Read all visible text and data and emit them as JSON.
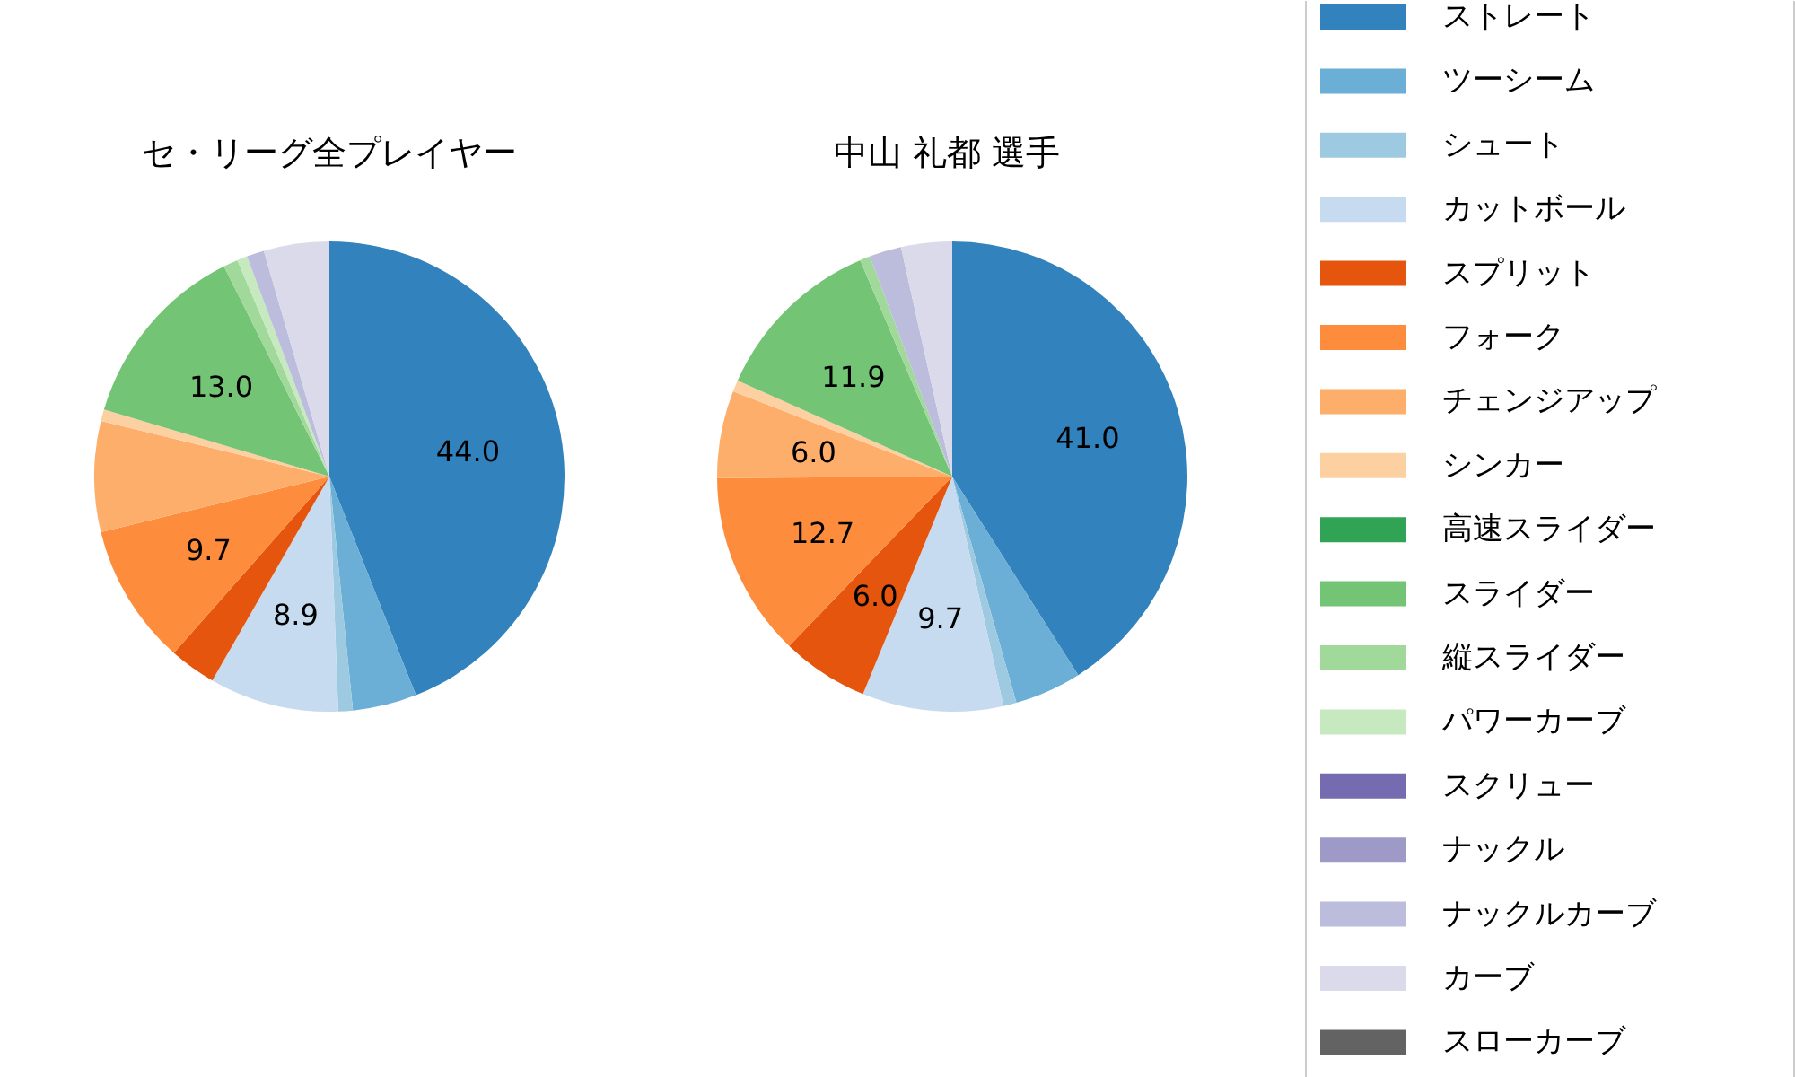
{
  "chart_data": [
    {
      "type": "pie",
      "title": "セ・リーグ全プレイヤー",
      "categories": [
        "ストレート",
        "ツーシーム",
        "シュート",
        "カットボール",
        "スプリット",
        "フォーク",
        "チェンジアップ",
        "シンカー",
        "高速スライダー",
        "スライダー",
        "縦スライダー",
        "パワーカーブ",
        "スクリュー",
        "ナックル",
        "ナックルカーブ",
        "カーブ",
        "スローカーブ"
      ],
      "values": [
        44.0,
        4.4,
        1.0,
        8.9,
        3.2,
        9.7,
        7.6,
        0.8,
        0,
        13.0,
        1.0,
        0.7,
        0,
        0,
        1.2,
        4.5,
        0
      ],
      "colors": [
        "#3182bd",
        "#6baed6",
        "#9ecae1",
        "#c6dbef",
        "#e6550d",
        "#fd8d3c",
        "#fdae6b",
        "#fdd0a2",
        "#31a354",
        "#74c476",
        "#a1d99b",
        "#c7e9c0",
        "#756bb1",
        "#9e9ac8",
        "#bcbddc",
        "#dadaeb",
        "#636363"
      ],
      "value_labels": [
        "44.0",
        null,
        null,
        "8.9",
        null,
        "9.7",
        null,
        null,
        null,
        "13.0",
        null,
        null,
        null,
        null,
        null,
        null,
        null
      ],
      "legend": "right"
    },
    {
      "type": "pie",
      "title": "中山 礼都  選手",
      "values": [
        41.0,
        4.6,
        0.9,
        9.7,
        6.0,
        12.7,
        6.0,
        0.8,
        0,
        11.9,
        0.7,
        0,
        0,
        0,
        2.2,
        3.5,
        0
      ],
      "colors": [
        "#3182bd",
        "#6baed6",
        "#9ecae1",
        "#c6dbef",
        "#e6550d",
        "#fd8d3c",
        "#fdae6b",
        "#fdd0a2",
        "#31a354",
        "#74c476",
        "#a1d99b",
        "#c7e9c0",
        "#756bb1",
        "#9e9ac8",
        "#bcbddc",
        "#dadaeb",
        "#636363"
      ],
      "value_labels": [
        "41.0",
        null,
        null,
        "9.7",
        "6.0",
        "12.7",
        "6.0",
        null,
        null,
        "11.9",
        null,
        null,
        null,
        null,
        null,
        null,
        null
      ]
    }
  ]
}
